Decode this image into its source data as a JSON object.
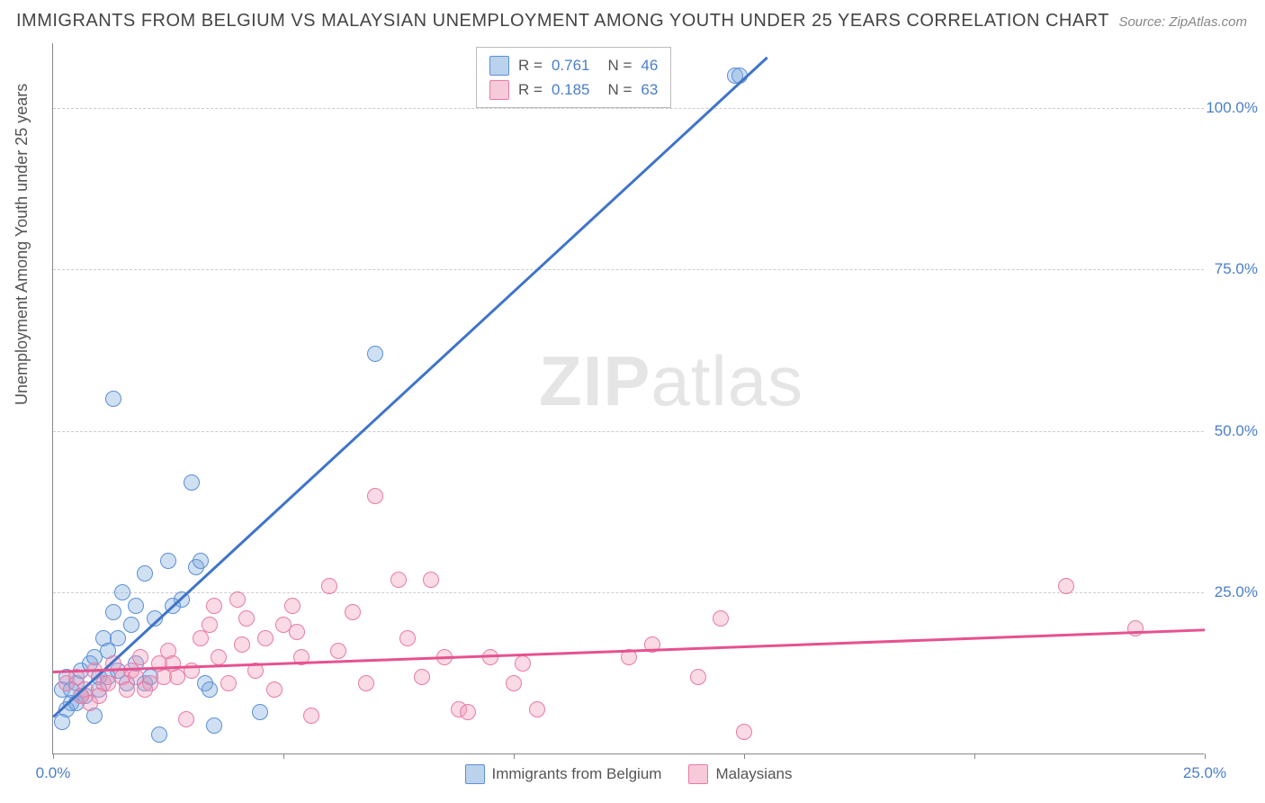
{
  "title": "IMMIGRANTS FROM BELGIUM VS MALAYSIAN UNEMPLOYMENT AMONG YOUTH UNDER 25 YEARS CORRELATION CHART",
  "source": "Source: ZipAtlas.com",
  "ylabel": "Unemployment Among Youth under 25 years",
  "watermark": {
    "zip": "ZIP",
    "atlas": "atlas"
  },
  "chart": {
    "type": "scatter",
    "background_color": "#ffffff",
    "grid_color": "#cccccc",
    "axis_color": "#888888",
    "tick_label_color": "#4a7ec9",
    "tick_fontsize": 17,
    "title_fontsize": 20,
    "title_color": "#444444",
    "ylabel_fontsize": 18,
    "xlim": [
      0,
      25
    ],
    "ylim": [
      0,
      110
    ],
    "xtick_positions": [
      0,
      5,
      10,
      15,
      20,
      25
    ],
    "xtick_labels_visible": {
      "0": "0.0%",
      "25": "25.0%"
    },
    "ytick_positions": [
      25,
      50,
      75,
      100
    ],
    "ytick_labels": {
      "25": "25.0%",
      "50": "50.0%",
      "75": "75.0%",
      "100": "100.0%"
    },
    "marker_radius": 9,
    "series": [
      {
        "name": "Immigrants from Belgium",
        "color_fill": "rgba(120,165,220,0.35)",
        "color_stroke": "#5b8fd6",
        "class": "blue",
        "R": "0.761",
        "N": "46",
        "trend": {
          "x1": 0,
          "y1": 6,
          "x2": 15.5,
          "y2": 108,
          "color": "#3f74c8",
          "width": 2.5
        },
        "points": [
          [
            0.2,
            10
          ],
          [
            0.3,
            12
          ],
          [
            0.4,
            8
          ],
          [
            0.5,
            11
          ],
          [
            0.6,
            13
          ],
          [
            0.7,
            9
          ],
          [
            0.8,
            14
          ],
          [
            0.9,
            15
          ],
          [
            1.0,
            12
          ],
          [
            1.1,
            18
          ],
          [
            1.2,
            16
          ],
          [
            1.3,
            22
          ],
          [
            1.4,
            13
          ],
          [
            1.5,
            25
          ],
          [
            1.6,
            11
          ],
          [
            1.7,
            20
          ],
          [
            1.8,
            23
          ],
          [
            2.0,
            28
          ],
          [
            2.2,
            21
          ],
          [
            2.5,
            30
          ],
          [
            2.8,
            24
          ],
          [
            3.0,
            42
          ],
          [
            3.1,
            29
          ],
          [
            3.2,
            30
          ],
          [
            3.3,
            11
          ],
          [
            3.4,
            10
          ],
          [
            3.5,
            4.5
          ],
          [
            0.3,
            7
          ],
          [
            0.4,
            10
          ],
          [
            2.0,
            11
          ],
          [
            2.1,
            12
          ],
          [
            1.3,
            55
          ],
          [
            4.5,
            6.5
          ],
          [
            2.3,
            3
          ],
          [
            0.9,
            6
          ],
          [
            0.5,
            8
          ],
          [
            0.6,
            9
          ],
          [
            1.0,
            10
          ],
          [
            1.2,
            12
          ],
          [
            1.4,
            18
          ],
          [
            1.8,
            14
          ],
          [
            2.6,
            23
          ],
          [
            7.0,
            62
          ],
          [
            14.8,
            105
          ],
          [
            14.9,
            105
          ],
          [
            0.2,
            5
          ]
        ]
      },
      {
        "name": "Malaysians",
        "color_fill": "rgba(240,150,180,0.35)",
        "color_stroke": "#e77ba8",
        "class": "pink",
        "R": "0.185",
        "N": "63",
        "trend": {
          "x1": 0,
          "y1": 13,
          "x2": 25,
          "y2": 19.5,
          "color": "#e6528f",
          "width": 2.5
        },
        "points": [
          [
            0.3,
            11
          ],
          [
            0.5,
            12
          ],
          [
            0.7,
            10
          ],
          [
            0.9,
            13
          ],
          [
            1.1,
            11
          ],
          [
            1.3,
            14
          ],
          [
            1.5,
            12
          ],
          [
            1.7,
            13
          ],
          [
            1.9,
            15
          ],
          [
            2.1,
            11
          ],
          [
            2.3,
            14
          ],
          [
            2.5,
            16
          ],
          [
            2.7,
            12
          ],
          [
            2.9,
            5.5
          ],
          [
            3.0,
            13
          ],
          [
            3.2,
            18
          ],
          [
            3.4,
            20
          ],
          [
            3.6,
            15
          ],
          [
            3.8,
            11
          ],
          [
            4.0,
            24
          ],
          [
            4.2,
            21
          ],
          [
            4.4,
            13
          ],
          [
            4.6,
            18
          ],
          [
            4.8,
            10
          ],
          [
            5.0,
            20
          ],
          [
            5.2,
            23
          ],
          [
            5.4,
            15
          ],
          [
            5.6,
            6
          ],
          [
            6.0,
            26
          ],
          [
            6.5,
            22
          ],
          [
            6.8,
            11
          ],
          [
            7.0,
            40
          ],
          [
            7.5,
            27
          ],
          [
            7.7,
            18
          ],
          [
            8.0,
            12
          ],
          [
            8.2,
            27
          ],
          [
            8.5,
            15
          ],
          [
            8.8,
            7
          ],
          [
            9.0,
            6.5
          ],
          [
            9.5,
            15
          ],
          [
            10.0,
            11
          ],
          [
            10.2,
            14
          ],
          [
            10.5,
            7
          ],
          [
            12.5,
            15
          ],
          [
            13.0,
            17
          ],
          [
            14.0,
            12
          ],
          [
            14.5,
            21
          ],
          [
            15.0,
            3.5
          ],
          [
            3.5,
            23
          ],
          [
            4.1,
            17
          ],
          [
            5.3,
            19
          ],
          [
            6.2,
            16
          ],
          [
            2.0,
            10
          ],
          [
            2.4,
            12
          ],
          [
            1.0,
            9
          ],
          [
            1.6,
            10
          ],
          [
            0.8,
            8
          ],
          [
            0.6,
            9
          ],
          [
            1.2,
            11
          ],
          [
            22.0,
            26
          ],
          [
            23.5,
            19.5
          ],
          [
            1.8,
            12
          ],
          [
            2.6,
            14
          ]
        ]
      }
    ],
    "legend_top": {
      "R_label": "R =",
      "N_label": "N ="
    },
    "legend_bottom": [
      {
        "class": "blue",
        "label": "Immigrants from Belgium"
      },
      {
        "class": "pink",
        "label": "Malaysians"
      }
    ]
  }
}
